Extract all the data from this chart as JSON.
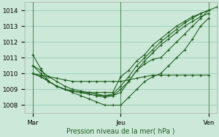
{
  "title": "Pression niveau de la mer( hPa )",
  "bg_color": "#cce8d8",
  "grid_color": "#99ccbb",
  "line_color": "#1a5c1a",
  "xlim": [
    0,
    48
  ],
  "ylim": [
    1007.5,
    1014.5
  ],
  "yticks": [
    1008,
    1009,
    1010,
    1011,
    1012,
    1013,
    1014
  ],
  "xtick_positions": [
    2,
    24,
    46
  ],
  "xtick_labels": [
    "Mar",
    "Jeu",
    "Ven"
  ],
  "vlines": [
    2,
    24,
    46
  ],
  "series": [
    {
      "x": [
        2,
        4,
        6,
        8,
        10,
        12,
        14,
        16,
        18,
        20,
        22,
        24,
        26,
        28,
        30,
        32,
        34,
        36,
        38,
        40,
        42,
        44,
        46,
        48
      ],
      "y": [
        1011.2,
        1010.3,
        1009.5,
        1009.2,
        1009.0,
        1008.9,
        1008.8,
        1008.8,
        1008.8,
        1008.8,
        1008.8,
        1009.8,
        1010.2,
        1010.8,
        1011.2,
        1011.8,
        1012.2,
        1012.6,
        1013.0,
        1013.3,
        1013.6,
        1013.8,
        1014.0,
        1014.2
      ]
    },
    {
      "x": [
        2,
        4,
        6,
        8,
        10,
        12,
        14,
        16,
        18,
        20,
        22,
        24,
        26,
        28,
        30,
        32,
        34,
        36,
        38,
        40,
        42,
        44,
        46
      ],
      "y": [
        1010.5,
        1010.0,
        1009.5,
        1009.2,
        1009.0,
        1008.9,
        1008.8,
        1008.7,
        1008.6,
        1008.6,
        1008.7,
        1009.2,
        1009.8,
        1010.5,
        1011.0,
        1011.5,
        1012.0,
        1012.4,
        1012.8,
        1013.2,
        1013.5,
        1013.8,
        1014.0
      ]
    },
    {
      "x": [
        2,
        4,
        6,
        8,
        10,
        12,
        14,
        16,
        18,
        20,
        22,
        24,
        26,
        28,
        30,
        32,
        34,
        36,
        38,
        40,
        42,
        44,
        46
      ],
      "y": [
        1010.0,
        1009.8,
        1009.5,
        1009.2,
        1009.0,
        1008.9,
        1008.8,
        1008.7,
        1008.6,
        1008.5,
        1008.6,
        1009.0,
        1009.5,
        1010.2,
        1010.8,
        1011.3,
        1011.8,
        1012.2,
        1012.6,
        1013.0,
        1013.3,
        1013.6,
        1013.8
      ]
    },
    {
      "x": [
        2,
        4,
        6,
        8,
        10,
        12,
        14,
        16,
        18,
        20,
        22,
        24,
        26,
        28,
        30,
        32,
        34,
        36,
        38,
        40,
        42,
        44,
        46
      ],
      "y": [
        1010.0,
        1009.8,
        1009.5,
        1009.2,
        1009.0,
        1008.8,
        1008.6,
        1008.4,
        1008.2,
        1008.0,
        1008.0,
        1008.0,
        1008.5,
        1009.0,
        1009.5,
        1009.8,
        1010.0,
        1010.5,
        1011.0,
        1011.5,
        1012.2,
        1013.0,
        1013.5
      ]
    },
    {
      "x": [
        2,
        4,
        6,
        8,
        10,
        12,
        14,
        16,
        18,
        20,
        22,
        24,
        26,
        28,
        30,
        32,
        34,
        36,
        38,
        40,
        42,
        44,
        46
      ],
      "y": [
        1010.0,
        1009.9,
        1009.8,
        1009.7,
        1009.6,
        1009.5,
        1009.5,
        1009.5,
        1009.5,
        1009.5,
        1009.5,
        1009.5,
        1009.6,
        1009.7,
        1009.8,
        1009.9,
        1009.9,
        1009.9,
        1009.9,
        1009.9,
        1009.9,
        1009.9,
        1009.9
      ]
    },
    {
      "x": [
        2,
        4,
        6,
        8,
        10,
        12,
        14,
        16,
        18,
        20,
        22,
        24,
        26,
        28,
        30,
        32,
        34,
        36,
        38,
        40,
        42,
        44,
        46
      ],
      "y": [
        1010.5,
        1010.2,
        1009.8,
        1009.5,
        1009.2,
        1009.0,
        1008.9,
        1008.8,
        1008.7,
        1008.6,
        1008.6,
        1008.8,
        1009.5,
        1010.2,
        1010.6,
        1010.9,
        1011.0,
        1011.5,
        1012.0,
        1012.5,
        1013.0,
        1013.5,
        1014.0
      ]
    }
  ]
}
